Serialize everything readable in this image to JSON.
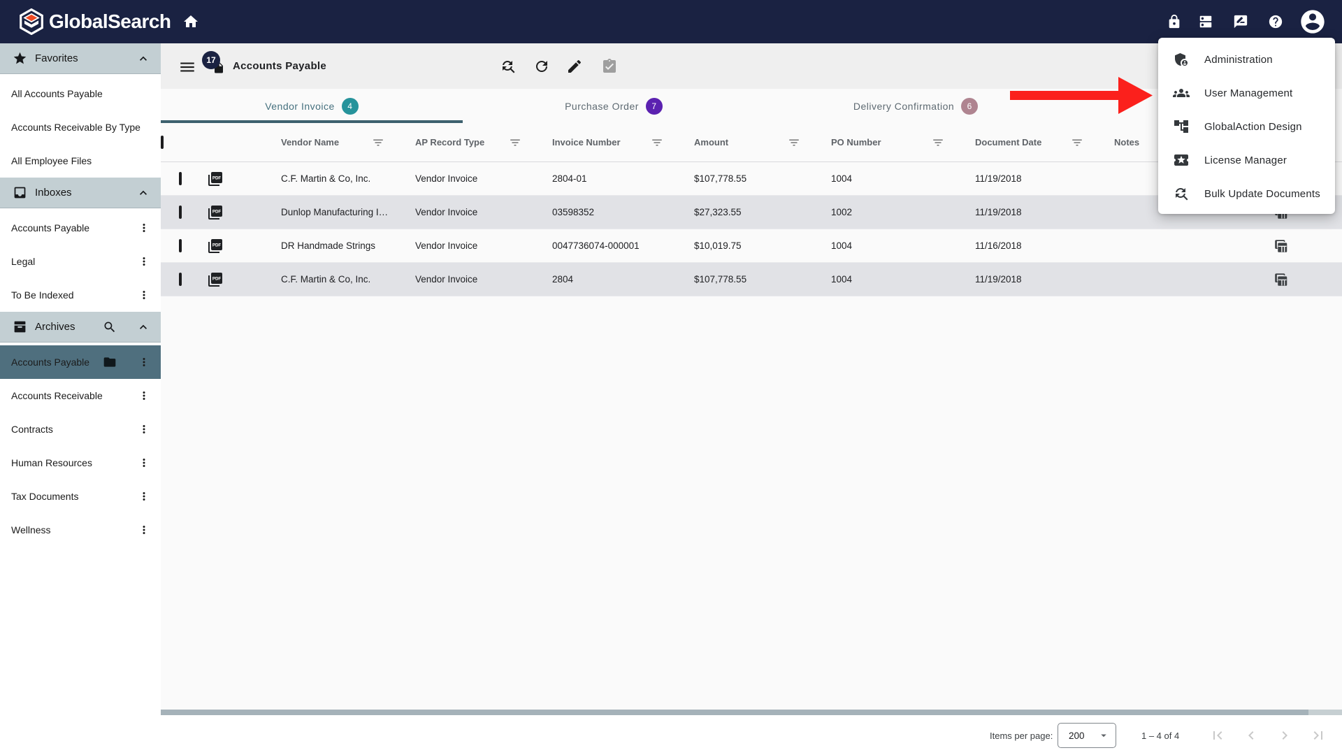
{
  "topbar": {
    "logo_text": "GlobalSearch"
  },
  "toolbar": {
    "badge_count": "17",
    "title": "Accounts Payable"
  },
  "tabs": [
    {
      "label": "Vendor Invoice",
      "count": "4",
      "badge_color": "#26939B",
      "active": true
    },
    {
      "label": "Purchase Order",
      "count": "7",
      "badge_color": "#5B21B0",
      "active": false
    },
    {
      "label": "Delivery Confirmation",
      "count": "6",
      "badge_color": "#AF8490",
      "active": false
    }
  ],
  "sidebar": {
    "sections": [
      {
        "label": "Favorites",
        "icon": "star-icon",
        "search": false,
        "items": [
          {
            "label": "All Accounts Payable"
          },
          {
            "label": "Accounts Receivable By Type"
          },
          {
            "label": "All Employee Files"
          }
        ]
      },
      {
        "label": "Inboxes",
        "icon": "inbox-icon",
        "search": false,
        "items": [
          {
            "label": "Accounts Payable",
            "kebab": true
          },
          {
            "label": "Legal",
            "kebab": true
          },
          {
            "label": "To Be Indexed",
            "kebab": true
          }
        ]
      },
      {
        "label": "Archives",
        "icon": "archive-icon",
        "search": true,
        "items": [
          {
            "label": "Accounts Payable",
            "kebab": true,
            "selected": true,
            "folder": true
          },
          {
            "label": "Accounts Receivable",
            "kebab": true
          },
          {
            "label": "Contracts",
            "kebab": true
          },
          {
            "label": "Human Resources",
            "kebab": true
          },
          {
            "label": "Tax Documents",
            "kebab": true
          },
          {
            "label": "Wellness",
            "kebab": true
          }
        ]
      }
    ]
  },
  "table": {
    "columns": [
      "Vendor Name",
      "AP Record Type",
      "Invoice Number",
      "Amount",
      "PO Number",
      "Document Date",
      "Notes"
    ],
    "rows": [
      {
        "vendor": "C.F. Martin & Co, Inc.",
        "type": "Vendor Invoice",
        "invoice": "2804-01",
        "amount": "$107,778.55",
        "po": "1004",
        "date": "11/19/2018",
        "notes": ""
      },
      {
        "vendor": "Dunlop Manufacturing I…",
        "type": "Vendor Invoice",
        "invoice": "03598352",
        "amount": "$27,323.55",
        "po": "1002",
        "date": "11/19/2018",
        "notes": ""
      },
      {
        "vendor": "DR Handmade Strings",
        "type": "Vendor Invoice",
        "invoice": "0047736074-000001",
        "amount": "$10,019.75",
        "po": "1004",
        "date": "11/16/2018",
        "notes": ""
      },
      {
        "vendor": "C.F. Martin & Co, Inc.",
        "type": "Vendor Invoice",
        "invoice": "2804",
        "amount": "$107,778.55",
        "po": "1004",
        "date": "11/19/2018",
        "notes": ""
      }
    ]
  },
  "menu": {
    "items": [
      {
        "icon": "admin-icon",
        "label": "Administration"
      },
      {
        "icon": "user-management-icon",
        "label": "User Management"
      },
      {
        "icon": "globalaction-design-icon",
        "label": "GlobalAction Design"
      },
      {
        "icon": "license-manager-icon",
        "label": "License Manager"
      },
      {
        "icon": "bulk-update-icon",
        "label": "Bulk Update Documents"
      }
    ]
  },
  "pagination": {
    "items_per_page_label": "Items per page:",
    "page_size": "200",
    "range": "1 – 4 of 4"
  },
  "colors": {
    "topbar_navy": "#1A2242",
    "section_header_bg": "#C3CFD3",
    "selected_item_bg": "#4F6F7E",
    "alt_row_bg": "#E1E2E6",
    "active_tab": "#45707E",
    "tab_underline": "#3D616E",
    "badge_teal": "#26939B",
    "badge_purple": "#5B21B0",
    "badge_mauve": "#AF8490",
    "arrow_red": "#FB201C"
  }
}
